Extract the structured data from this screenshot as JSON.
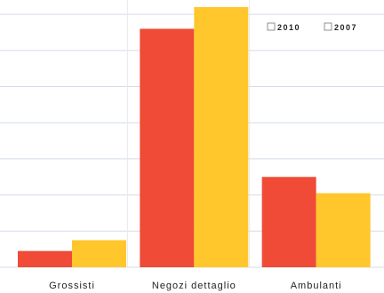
{
  "chart_data": {
    "type": "bar",
    "categories": [
      "Grossisti",
      "Negozi dettaglio",
      "Ambulanti"
    ],
    "series": [
      {
        "name": "2010",
        "values": [
          4.5,
          66,
          25
        ],
        "color": "#ef4b36"
      },
      {
        "name": "2007",
        "values": [
          7.5,
          72,
          20.5
        ],
        "color": "#ffc72c"
      }
    ],
    "ylim": [
      0,
      72
    ],
    "y_gridlines": [
      0,
      10,
      20,
      30,
      40,
      50,
      60,
      70
    ],
    "grid": true,
    "legend_position": "top-right",
    "xlabel": "",
    "ylabel": "",
    "title": ""
  },
  "colors": {
    "grid": "#d4dbe8",
    "separator": "#e6e9f0",
    "text": "#222222",
    "legend_box": "#777777"
  }
}
